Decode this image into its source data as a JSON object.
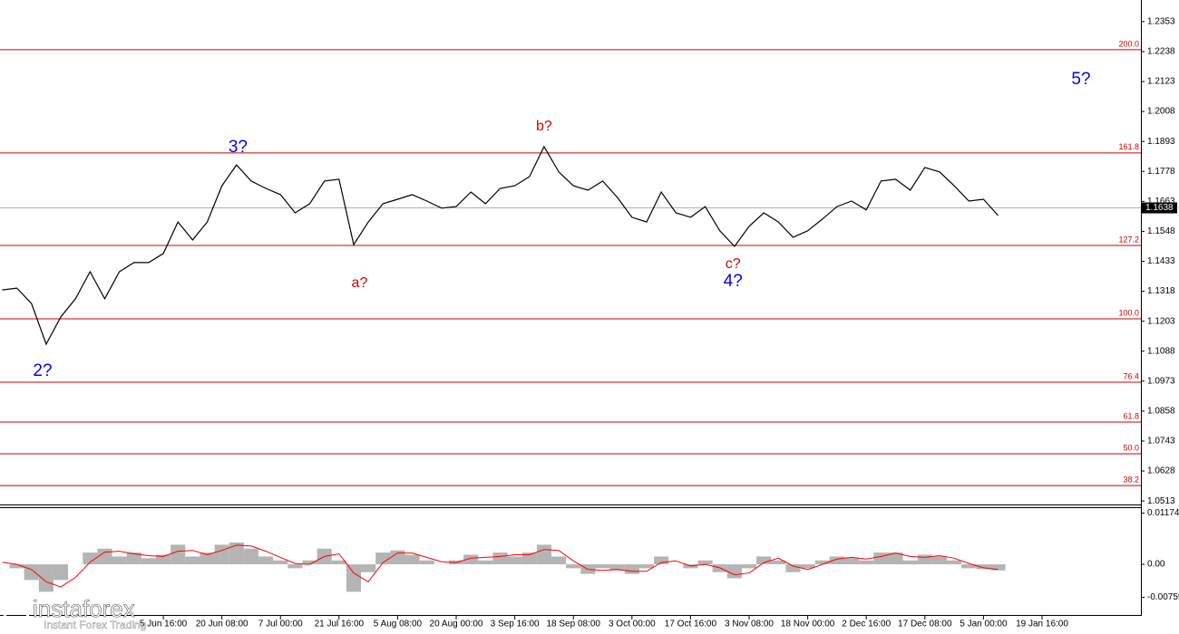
{
  "chart_data": [
    {
      "type": "line",
      "ylim": [
        1.0496,
        1.2436
      ],
      "xlim": [
        -0.15,
        77.75
      ],
      "yticks": [
        1.2353,
        1.2238,
        1.2123,
        1.2008,
        1.1893,
        1.1778,
        1.1663,
        1.1548,
        1.1433,
        1.1318,
        1.1203,
        1.1088,
        1.0973,
        1.0858,
        1.0743,
        1.0628,
        1.0513
      ],
      "x_labels": [
        {
          "index": 11,
          "label": "5 Jun 16:00"
        },
        {
          "index": 15,
          "label": "20 Jun 08:00"
        },
        {
          "index": 19,
          "label": "7 Jul 00:00"
        },
        {
          "index": 23,
          "label": "21 Jul 16:00"
        },
        {
          "index": 27,
          "label": "5 Aug 08:00"
        },
        {
          "index": 31,
          "label": "20 Aug 00:00"
        },
        {
          "index": 35,
          "label": "3 Sep 16:00"
        },
        {
          "index": 39,
          "label": "18 Sep 08:00"
        },
        {
          "index": 43,
          "label": "3 Oct 00:00"
        },
        {
          "index": 47,
          "label": "17 Oct 16:00"
        },
        {
          "index": 51,
          "label": "3 Nov 08:00"
        },
        {
          "index": 55,
          "label": "18 Nov 00:00"
        },
        {
          "index": 59,
          "label": "2 Dec 16:00"
        },
        {
          "index": 63,
          "label": "17 Dec 08:00"
        },
        {
          "index": 67,
          "label": "5 Jan 00:00"
        },
        {
          "index": 71,
          "label": "19 Jan 16:00"
        }
      ],
      "series": [
        {
          "color": "#000000",
          "values": [
            1.1323,
            1.133,
            1.1271,
            1.1115,
            1.1219,
            1.1289,
            1.1393,
            1.1289,
            1.1393,
            1.1428,
            1.1428,
            1.1463,
            1.1584,
            1.1515,
            1.1584,
            1.1723,
            1.1803,
            1.1741,
            1.1713,
            1.1689,
            1.1619,
            1.1654,
            1.1741,
            1.1748,
            1.1497,
            1.1584,
            1.1654,
            1.1671,
            1.1689,
            1.1664,
            1.1637,
            1.1643,
            1.1699,
            1.1654,
            1.1713,
            1.1723,
            1.1758,
            1.1873,
            1.1776,
            1.1723,
            1.1706,
            1.1741,
            1.1678,
            1.1602,
            1.1584,
            1.1699,
            1.1619,
            1.1602,
            1.1643,
            1.155,
            1.149,
            1.1567,
            1.1619,
            1.1584,
            1.1525,
            1.155,
            1.1595,
            1.1643,
            1.1664,
            1.163,
            1.1741,
            1.1748,
            1.1706,
            1.1793,
            1.1776,
            1.1723,
            1.1664,
            1.1671,
            1.1609
          ]
        }
      ],
      "last_price": 1.1638,
      "levels_color": "#cc0000",
      "levels": [
        {
          "label": "200.0",
          "price": 1.2245
        },
        {
          "label": "161.8",
          "price": 1.1849
        },
        {
          "label": "127.2",
          "price": 1.1494
        },
        {
          "label": "100.0",
          "price": 1.1212
        },
        {
          "label": "76.4",
          "price": 1.0969
        },
        {
          "label": "61.8",
          "price": 1.0816
        },
        {
          "label": "50.0",
          "price": 1.0694
        },
        {
          "label": "38.2",
          "price": 1.0572
        }
      ],
      "annotations": [
        {
          "text": "2?",
          "index": 2.76,
          "price": 1.101,
          "color": "#0000ff"
        },
        {
          "text": "3?",
          "index": 16.1,
          "price": 1.187,
          "color": "#0000ff"
        },
        {
          "text": "a?",
          "index": 24.4,
          "price": 1.1348,
          "color": "#d00000"
        },
        {
          "text": "b?",
          "index": 37,
          "price": 1.195,
          "color": "#d00000"
        },
        {
          "text": "c?",
          "index": 49.9,
          "price": 1.1421,
          "color": "#d00000"
        },
        {
          "text": "4?",
          "index": 49.9,
          "price": 1.1355,
          "color": "#0000ff"
        },
        {
          "text": "5?",
          "index": 73.66,
          "price": 1.213,
          "color": "#0000ff"
        }
      ]
    },
    {
      "type": "bar",
      "ylim": [
        -0.01183,
        0.0129
      ],
      "yticks": [
        0.01174,
        {
          "value": 0,
          "label": "0.00"
        },
        -0.00759
      ],
      "series": [
        {
          "color": "#b4b4b4",
          "values": [
            0,
            -0.0009,
            -0.0036,
            -0.0063,
            -0.0036,
            0,
            0.0027,
            0.0036,
            0.0018,
            0.0027,
            0.0014,
            0.0022,
            0.0045,
            0.0018,
            0.0027,
            0.0045,
            0.005,
            0.0036,
            0.0018,
            0.0009,
            -0.0009,
            0.0009,
            0.0036,
            0.0009,
            -0.0063,
            -0.0018,
            0.0027,
            0.0032,
            0.0022,
            0.0009,
            0,
            0.0009,
            0.0022,
            0.0009,
            0.0027,
            0.0018,
            0.0027,
            0.0045,
            0.0018,
            -0.0009,
            -0.0022,
            -0.0009,
            -0.0014,
            -0.0022,
            -0.0009,
            0.0018,
            0,
            -0.0009,
            0.0009,
            -0.0018,
            -0.0032,
            -0.0009,
            0.0018,
            0.0009,
            -0.0018,
            -0.0009,
            0.0009,
            0.0018,
            0.0014,
            0.0009,
            0.0027,
            0.0027,
            0.0009,
            0.0022,
            0.0018,
            0.0009,
            -0.0009,
            -0.0011,
            -0.0014
          ]
        },
        {
          "color": "#ff0000",
          "values": [
            0.0005,
            0,
            -0.0012,
            -0.004,
            -0.0052,
            -0.003,
            0.0005,
            0.0028,
            0.003,
            0.0024,
            0.002,
            0.0018,
            0.003,
            0.0032,
            0.0022,
            0.0032,
            0.0044,
            0.0042,
            0.003,
            0.0016,
            0.0002,
            0,
            0.0018,
            0.0024,
            -0.002,
            -0.004,
            0.0004,
            0.0026,
            0.0026,
            0.0016,
            0.0006,
            0.0004,
            0.0014,
            0.0016,
            0.0018,
            0.0022,
            0.0022,
            0.0034,
            0.0032,
            0.0008,
            -0.0012,
            -0.0014,
            -0.0012,
            -0.0016,
            -0.0016,
            0.0004,
            0.0008,
            -0.0004,
            0,
            -0.0008,
            -0.0024,
            -0.002,
            0.0004,
            0.0014,
            -0.0004,
            -0.0012,
            0,
            0.0012,
            0.0016,
            0.0012,
            0.0018,
            0.0026,
            0.0018,
            0.0016,
            0.002,
            0.0014,
            0.0002,
            -0.0008,
            -0.0012
          ]
        }
      ]
    }
  ],
  "branding": {
    "name": "instaforex",
    "tagline": "Instant Forex Trading"
  }
}
